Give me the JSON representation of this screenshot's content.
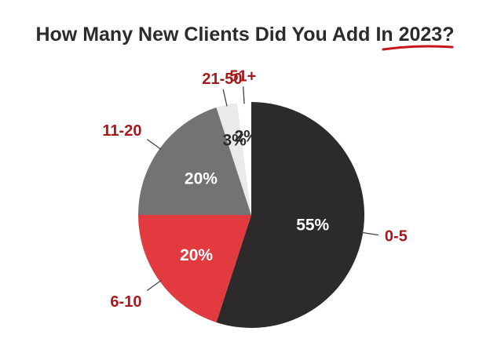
{
  "chart_data": {
    "type": "pie",
    "title": "How Many New Clients Did You Add",
    "title_emphasis": "In 2023",
    "title_suffix": "?",
    "legend": "none",
    "slices": [
      {
        "label": "0-5",
        "value": 55,
        "value_label": "55%",
        "color": "#2c2a2b",
        "text_color": "#ffffff"
      },
      {
        "label": "6-10",
        "value": 20,
        "value_label": "20%",
        "color": "#e23a3e",
        "text_color": "#ffffff"
      },
      {
        "label": "11-20",
        "value": 20,
        "value_label": "20%",
        "color": "#737373",
        "text_color": "#ffffff"
      },
      {
        "label": "21-50",
        "value": 3,
        "value_label": "3%",
        "color": "#e8eaec",
        "text_color": "#2b2b2b"
      },
      {
        "label": "51+",
        "value": 2,
        "value_label": "2%",
        "color": "#ffffff",
        "text_color": "#2b2b2b"
      }
    ],
    "label_color": "#a8191d",
    "underline_color": "#c4161c"
  }
}
